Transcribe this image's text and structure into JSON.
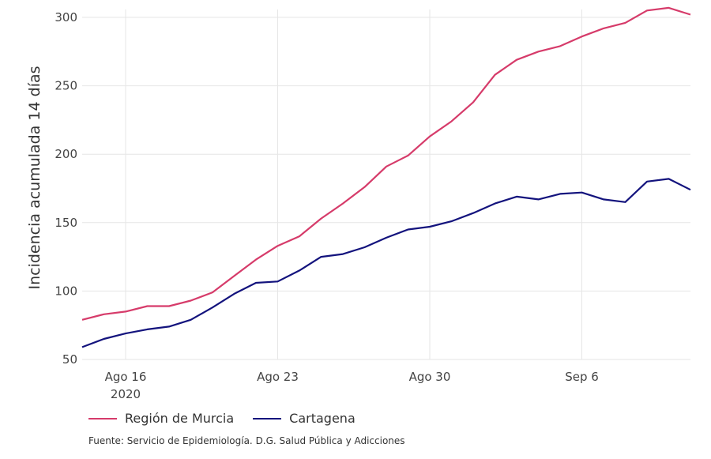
{
  "chart_data": {
    "type": "line",
    "title": "",
    "ylabel": "Incidencia acumulada 14 días",
    "xlabel": "",
    "ylim": [
      50,
      310
    ],
    "yticks": [
      50,
      100,
      150,
      200,
      250,
      300
    ],
    "grid": true,
    "legend_position": "bottom",
    "x_tick_labels": [
      {
        "date": "2020-08-16",
        "label": "Ago 16",
        "sublabel": "2020"
      },
      {
        "date": "2020-08-23",
        "label": "Ago 23",
        "sublabel": ""
      },
      {
        "date": "2020-08-30",
        "label": "Ago 30",
        "sublabel": ""
      },
      {
        "date": "2020-09-06",
        "label": "Sep 6",
        "sublabel": ""
      }
    ],
    "x": [
      "2020-08-14",
      "2020-08-15",
      "2020-08-16",
      "2020-08-17",
      "2020-08-18",
      "2020-08-19",
      "2020-08-20",
      "2020-08-21",
      "2020-08-22",
      "2020-08-23",
      "2020-08-24",
      "2020-08-25",
      "2020-08-26",
      "2020-08-27",
      "2020-08-28",
      "2020-08-29",
      "2020-08-30",
      "2020-08-31",
      "2020-09-01",
      "2020-09-02",
      "2020-09-03",
      "2020-09-04",
      "2020-09-05",
      "2020-09-06",
      "2020-09-07",
      "2020-09-08",
      "2020-09-09",
      "2020-09-10",
      "2020-09-11"
    ],
    "series": [
      {
        "name": "Región de Murcia",
        "color": "#d63b6a",
        "values": [
          79,
          83,
          85,
          89,
          89,
          93,
          99,
          111,
          123,
          133,
          140,
          153,
          164,
          176,
          191,
          199,
          213,
          224,
          238,
          258,
          269,
          275,
          279,
          286,
          292,
          296,
          305,
          307,
          302
        ]
      },
      {
        "name": "Cartagena",
        "color": "#13137d",
        "values": [
          59,
          65,
          69,
          72,
          74,
          79,
          88,
          98,
          106,
          107,
          115,
          125,
          127,
          132,
          139,
          145,
          147,
          151,
          157,
          164,
          169,
          167,
          171,
          172,
          167,
          165,
          180,
          182,
          174
        ]
      }
    ]
  },
  "source_text": "Fuente: Servicio de Epidemiología. D.G. Salud Pública y Adicciones"
}
